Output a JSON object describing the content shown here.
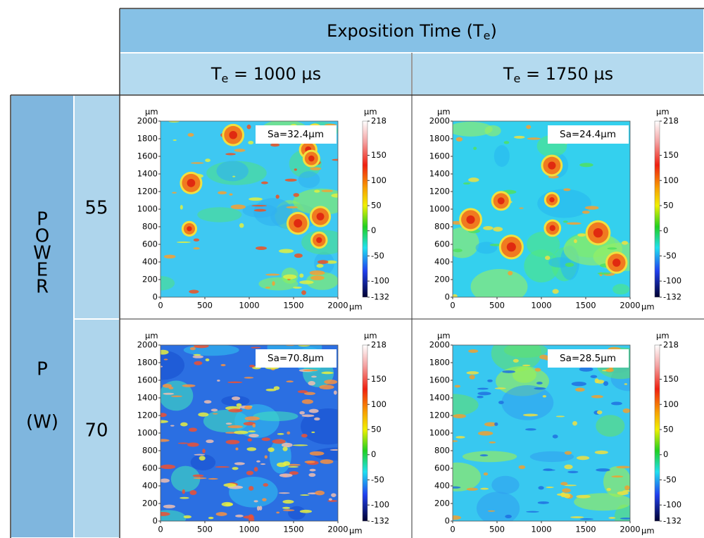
{
  "header": {
    "title": {
      "main": "Exposition Time (T",
      "sub": "e",
      "end": ")"
    },
    "columns": [
      {
        "pre": "T",
        "sub": "e",
        "post": " = 1000 µs"
      },
      {
        "pre": "T",
        "sub": "e",
        "post": " = 1750 µs"
      }
    ]
  },
  "row_header": {
    "word": [
      "P",
      "O",
      "W",
      "E",
      "R"
    ],
    "symbol": "P",
    "unit": "(W)"
  },
  "rows": [
    {
      "label": "55",
      "panels": [
        {
          "sa": "Sa=32.4µm"
        },
        {
          "sa": "Sa=24.4µm"
        }
      ]
    },
    {
      "label": "70",
      "panels": [
        {
          "sa": "Sa=70.8µm"
        },
        {
          "sa": "Sa=28.5µm"
        }
      ]
    }
  ],
  "axis": {
    "unit": "µm",
    "yticks": [
      0,
      200,
      400,
      600,
      800,
      1000,
      1200,
      1400,
      1600,
      1800,
      2000
    ],
    "xticks": [
      0,
      500,
      1000,
      1500,
      2000
    ]
  },
  "colorbar": {
    "unit": "µm",
    "ticks": [
      218,
      150,
      100,
      50,
      0,
      -50,
      -100,
      -132
    ]
  }
}
